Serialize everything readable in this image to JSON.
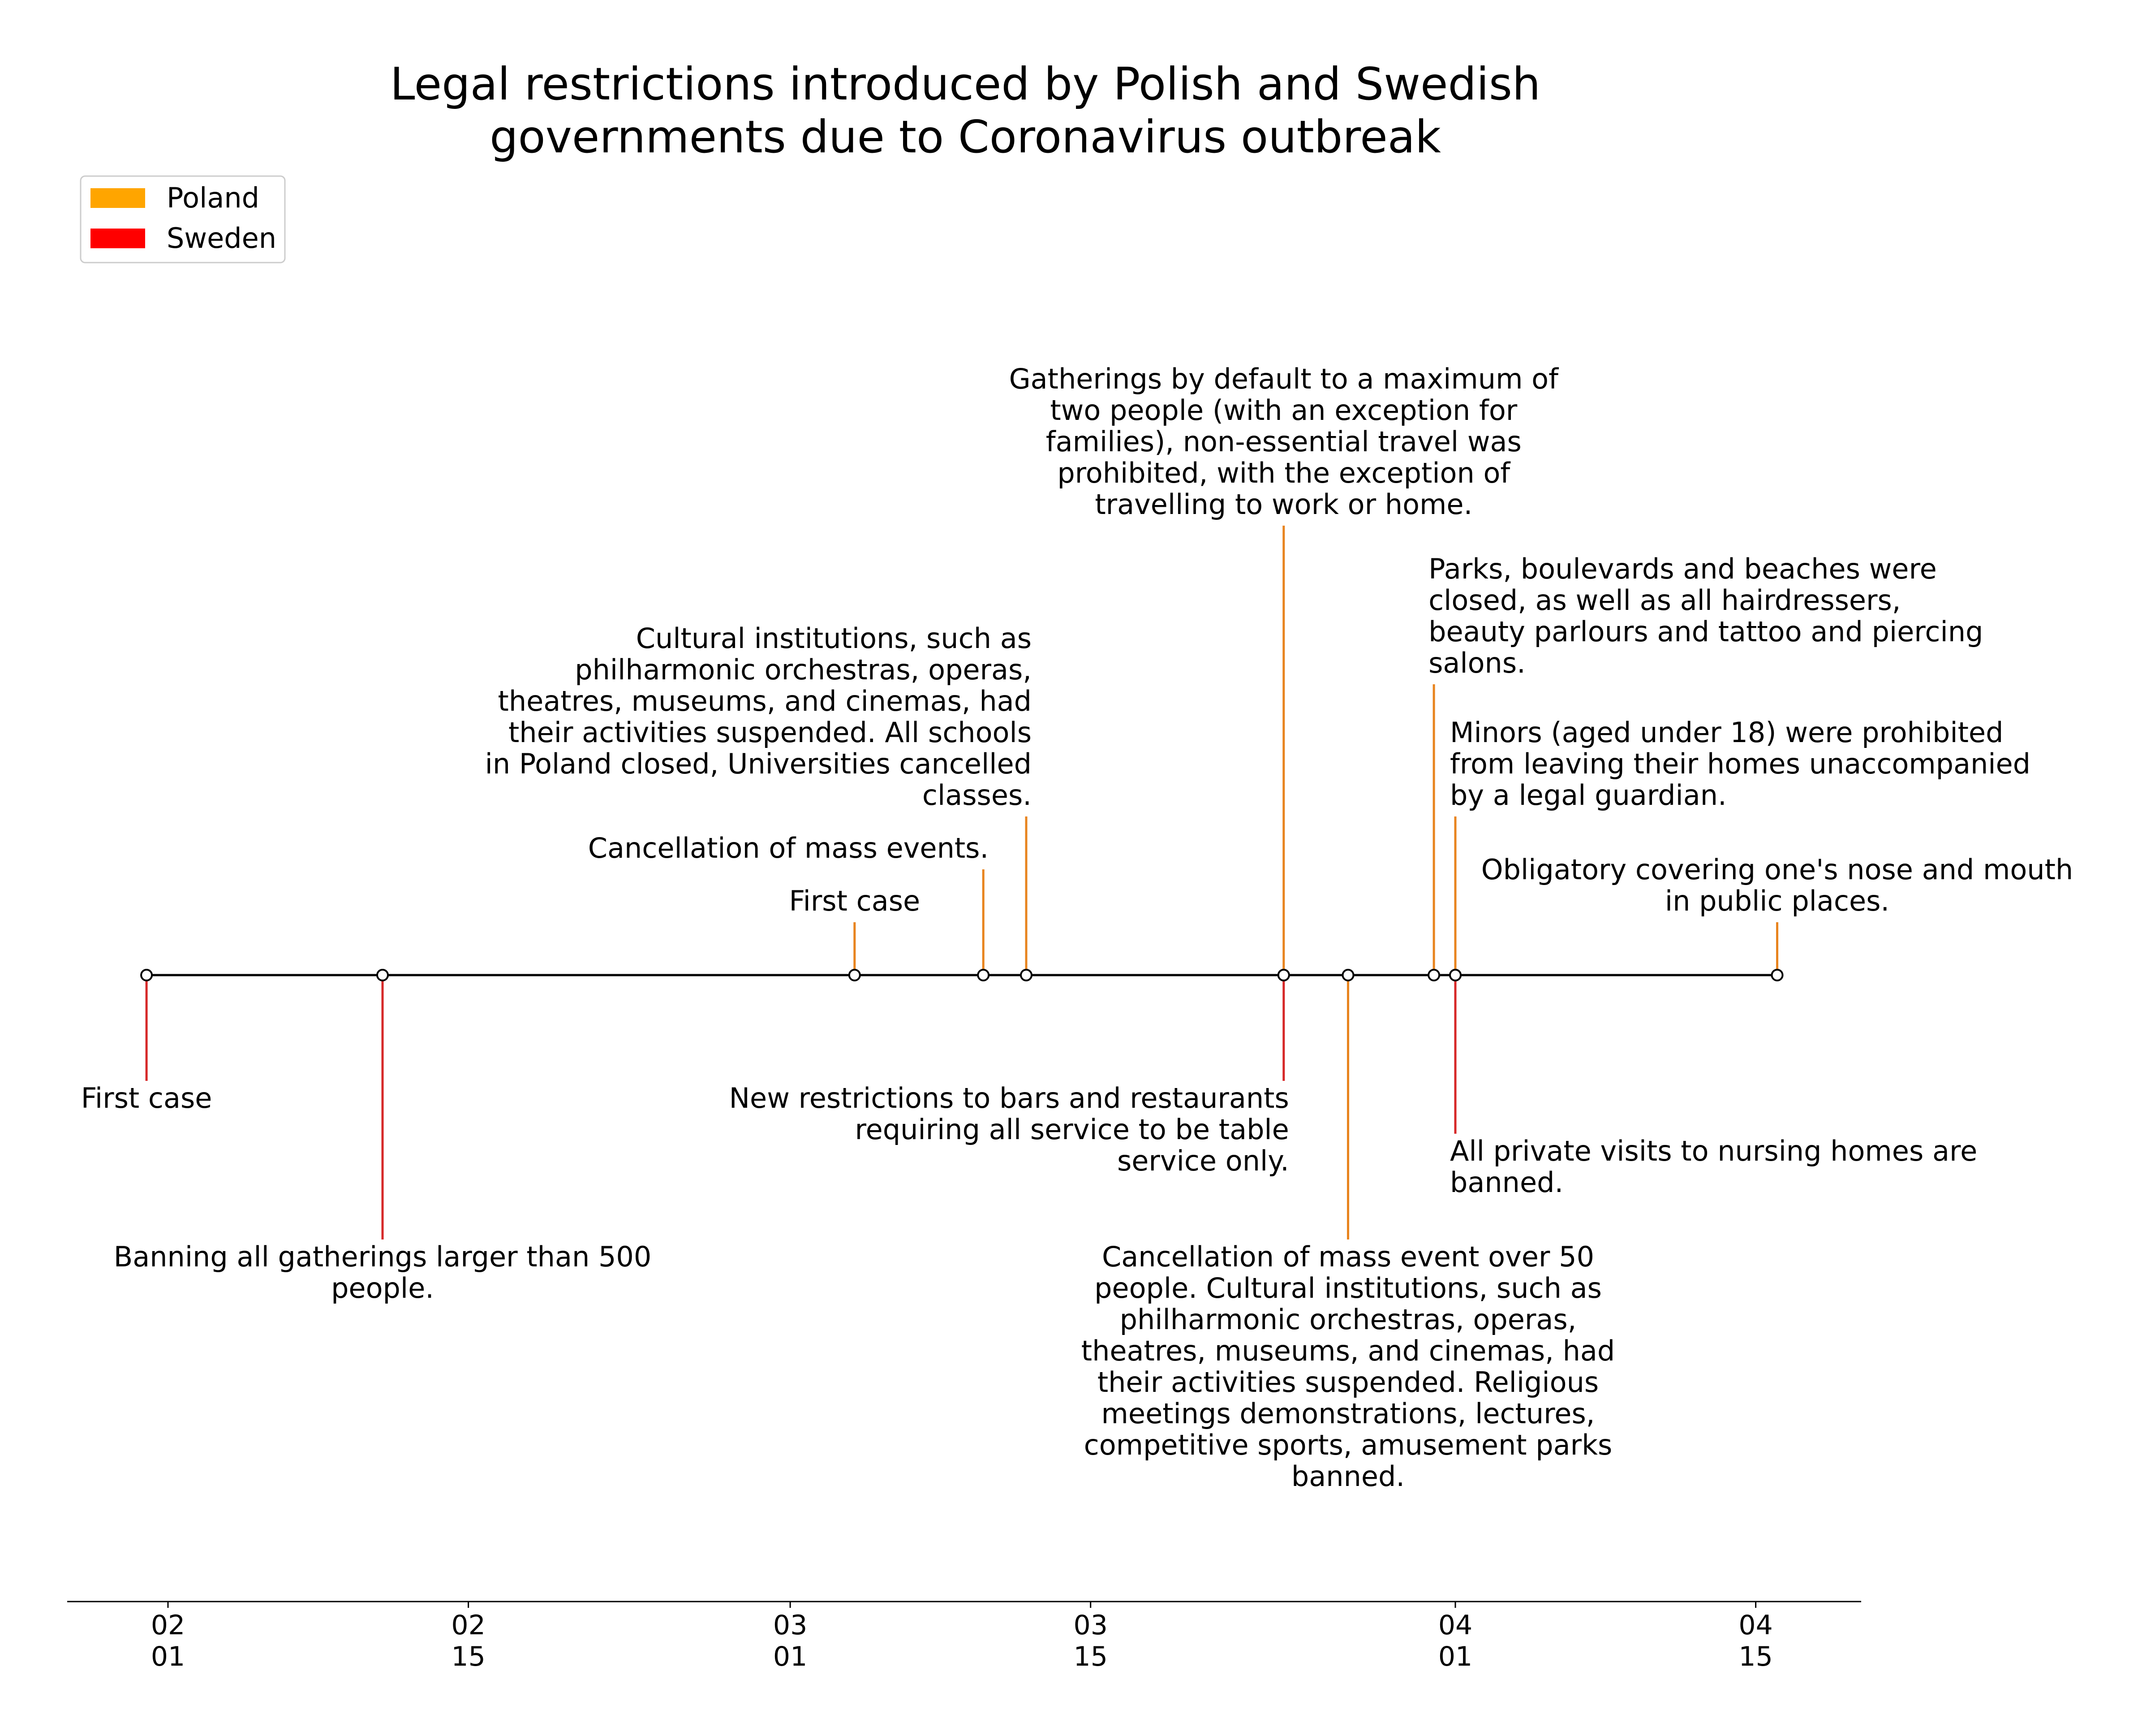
{
  "chart_data": {
    "type": "timeline",
    "title": "Legal restrictions introduced by Polish and Swedish governments due to Coronavirus outbreak",
    "title_lines": [
      "Legal restrictions introduced by Polish and Swedish",
      "governments due to Coronavirus outbreak"
    ],
    "legend_position": "upper-left",
    "legend": [
      {
        "name": "Poland",
        "color": "#FFA500"
      },
      {
        "name": "Sweden",
        "color": "#FF0000"
      }
    ],
    "x_axis": {
      "type": "date",
      "range": [
        "2020-01-27",
        "2020-04-20"
      ],
      "ticks": [
        {
          "date": "2020-02-01",
          "line1": "02",
          "line2": "01"
        },
        {
          "date": "2020-02-15",
          "line1": "02",
          "line2": "15"
        },
        {
          "date": "2020-03-01",
          "line1": "03",
          "line2": "01"
        },
        {
          "date": "2020-03-15",
          "line1": "03",
          "line2": "15"
        },
        {
          "date": "2020-04-01",
          "line1": "04",
          "line2": "01"
        },
        {
          "date": "2020-04-15",
          "line1": "04",
          "line2": "15"
        }
      ]
    },
    "events": [
      {
        "date": "2020-01-31",
        "country": "Sweden",
        "level": -2,
        "align": "center",
        "lines": [
          "First case"
        ]
      },
      {
        "date": "2020-02-11",
        "country": "Sweden",
        "level": -5,
        "align": "center",
        "lines": [
          "Banning all gatherings larger than 500",
          "people."
        ]
      },
      {
        "date": "2020-03-04",
        "country": "Poland",
        "level": 1,
        "align": "center",
        "lines": [
          "First case"
        ]
      },
      {
        "date": "2020-03-10",
        "country": "Poland",
        "level": 2,
        "align": "right",
        "lines": [
          "Cancellation of mass events."
        ]
      },
      {
        "date": "2020-03-12",
        "country": "Poland",
        "level": 3,
        "align": "right",
        "lines": [
          "Cultural institutions, such as",
          "philharmonic orchestras, operas,",
          "theatres, museums, and cinemas, had",
          "their activities suspended. All schools",
          "in Poland closed, Universities cancelled",
          "classes."
        ]
      },
      {
        "date": "2020-03-24",
        "country": "Sweden",
        "level": -2,
        "align": "right",
        "lines": [
          "New restrictions to bars and restaurants",
          "requiring all service to be table",
          "service only."
        ]
      },
      {
        "date": "2020-03-24",
        "country": "Poland",
        "level": 8.5,
        "align": "center",
        "lines": [
          "Gatherings by default to a maximum of",
          "two people (with an exception for",
          "families), non-essential travel was",
          "prohibited, with the exception of",
          "travelling to work or home."
        ]
      },
      {
        "date": "2020-03-27",
        "country": "Poland",
        "level": -5,
        "align": "center",
        "lines": [
          "Cancellation of mass event over 50",
          "people. Cultural institutions, such as",
          "philharmonic orchestras, operas,",
          "theatres, museums, and cinemas, had",
          "their activities suspended. Religious",
          "meetings demonstrations, lectures,",
          "competitive sports, amusement parks",
          "banned."
        ]
      },
      {
        "date": "2020-03-31",
        "country": "Poland",
        "level": 5.5,
        "align": "left",
        "lines": [
          "Parks, boulevards and beaches were",
          "closed, as well as all hairdressers,",
          "beauty parlours and tattoo and piercing",
          "salons."
        ]
      },
      {
        "date": "2020-04-01",
        "country": "Poland",
        "level": 3,
        "align": "left",
        "lines": [
          "Minors (aged under 18) were prohibited",
          "from leaving their homes unaccompanied",
          "by a legal guardian."
        ]
      },
      {
        "date": "2020-04-01",
        "country": "Sweden",
        "level": -3,
        "align": "left",
        "lines": [
          "All private visits to nursing homes are",
          "banned."
        ]
      },
      {
        "date": "2020-04-16",
        "country": "Poland",
        "level": 1,
        "align": "center",
        "lines": [
          "Obligatory covering one's nose and mouth",
          "in public places."
        ]
      }
    ]
  }
}
